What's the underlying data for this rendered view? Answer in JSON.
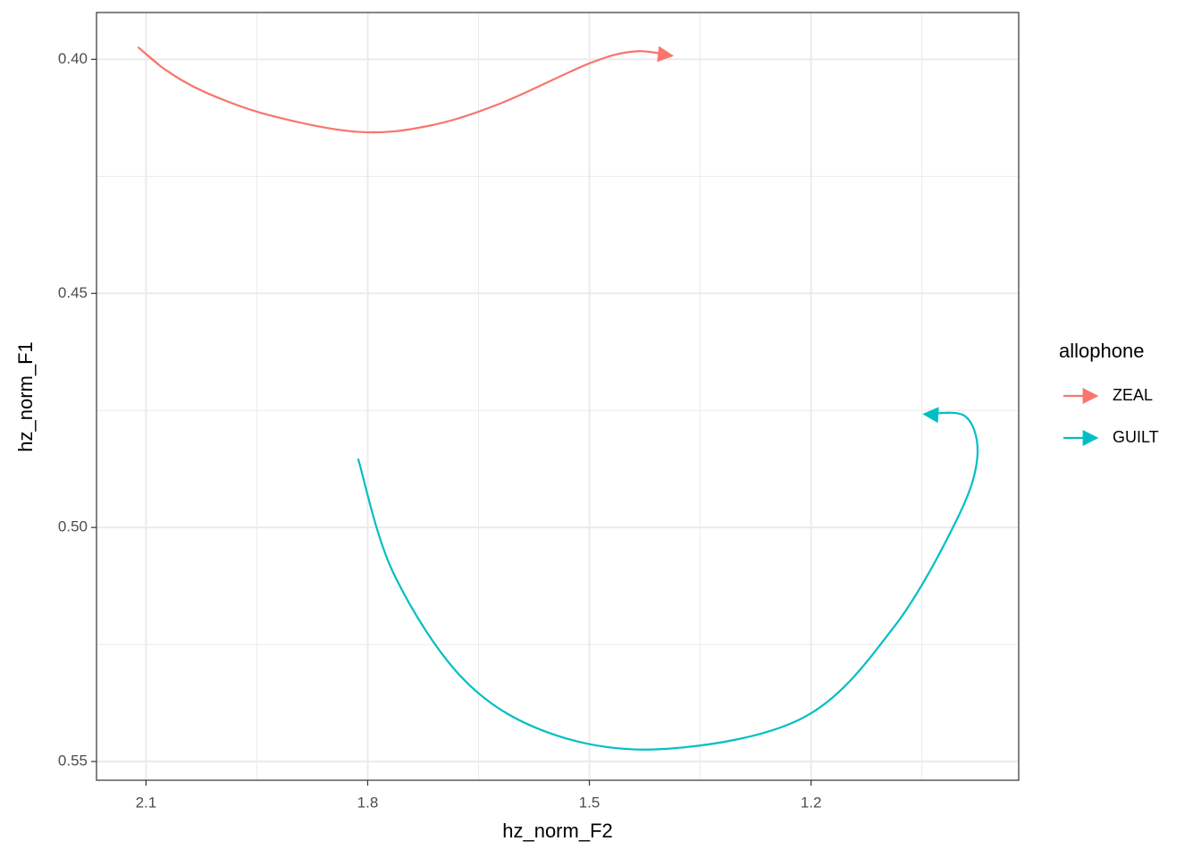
{
  "chart_data": {
    "type": "line",
    "x_label": "hz_norm_F2",
    "y_label": "hz_norm_F1",
    "legend_title": "allophone",
    "xlim": [
      2.167,
      0.919
    ],
    "ylim": [
      0.39,
      0.554
    ],
    "x_reversed": true,
    "y_reversed": true,
    "xticks": [
      2.1,
      1.8,
      1.5,
      1.2
    ],
    "yticks": [
      {
        "value": 0.4,
        "label": "0.40"
      },
      {
        "value": 0.45,
        "label": "0.45"
      },
      {
        "value": 0.5,
        "label": "0.50"
      },
      {
        "value": 0.55,
        "label": "0.55"
      }
    ],
    "x_minor_ticks": [
      1.95,
      1.65,
      1.35,
      1.05
    ],
    "y_minor_ticks": [
      0.425,
      0.475,
      0.525
    ],
    "grid": true,
    "legend": "right",
    "series": [
      {
        "name": "ZEAL",
        "color": "#F8766D",
        "x": [
          2.083,
          2.11,
          2.073,
          2.019,
          1.934,
          1.813,
          1.717,
          1.62,
          1.499,
          1.438,
          1.39
        ],
        "values": [
          0.4011,
          0.3975,
          0.4023,
          0.4071,
          0.4119,
          0.4155,
          0.4142,
          0.4094,
          0.4008,
          0.3983,
          0.3992
        ]
      },
      {
        "name": "GUILT",
        "color": "#00BFC4",
        "x": [
          1.813,
          1.765,
          1.668,
          1.547,
          1.396,
          1.209,
          1.088,
          1.003,
          0.975,
          0.991,
          1.045
        ],
        "values": [
          0.4853,
          0.5098,
          0.5328,
          0.5443,
          0.5473,
          0.5405,
          0.5213,
          0.4984,
          0.485,
          0.4763,
          0.4758
        ]
      }
    ]
  }
}
